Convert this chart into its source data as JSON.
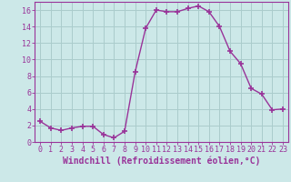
{
  "x": [
    0,
    1,
    2,
    3,
    4,
    5,
    6,
    7,
    8,
    9,
    10,
    11,
    12,
    13,
    14,
    15,
    16,
    17,
    18,
    19,
    20,
    21,
    22,
    23
  ],
  "y": [
    2.5,
    1.7,
    1.4,
    1.7,
    1.9,
    1.9,
    0.9,
    0.5,
    1.3,
    8.5,
    13.8,
    16.0,
    15.8,
    15.8,
    16.2,
    16.5,
    15.8,
    14.0,
    11.0,
    9.5,
    6.5,
    5.8,
    3.9,
    4.0
  ],
  "line_color": "#993399",
  "marker": "+",
  "markersize": 4,
  "linewidth": 1.0,
  "bg_color": "#cce8e8",
  "grid_color": "#aacccc",
  "xlabel": "Windchill (Refroidissement éolien,°C)",
  "xlabel_color": "#993399",
  "xlim": [
    -0.5,
    23.5
  ],
  "ylim": [
    0,
    17
  ],
  "yticks": [
    0,
    2,
    4,
    6,
    8,
    10,
    12,
    14,
    16
  ],
  "xticks": [
    0,
    1,
    2,
    3,
    4,
    5,
    6,
    7,
    8,
    9,
    10,
    11,
    12,
    13,
    14,
    15,
    16,
    17,
    18,
    19,
    20,
    21,
    22,
    23
  ],
  "tick_color": "#993399",
  "tick_fontsize": 6,
  "xlabel_fontsize": 7,
  "spine_color": "#993399"
}
